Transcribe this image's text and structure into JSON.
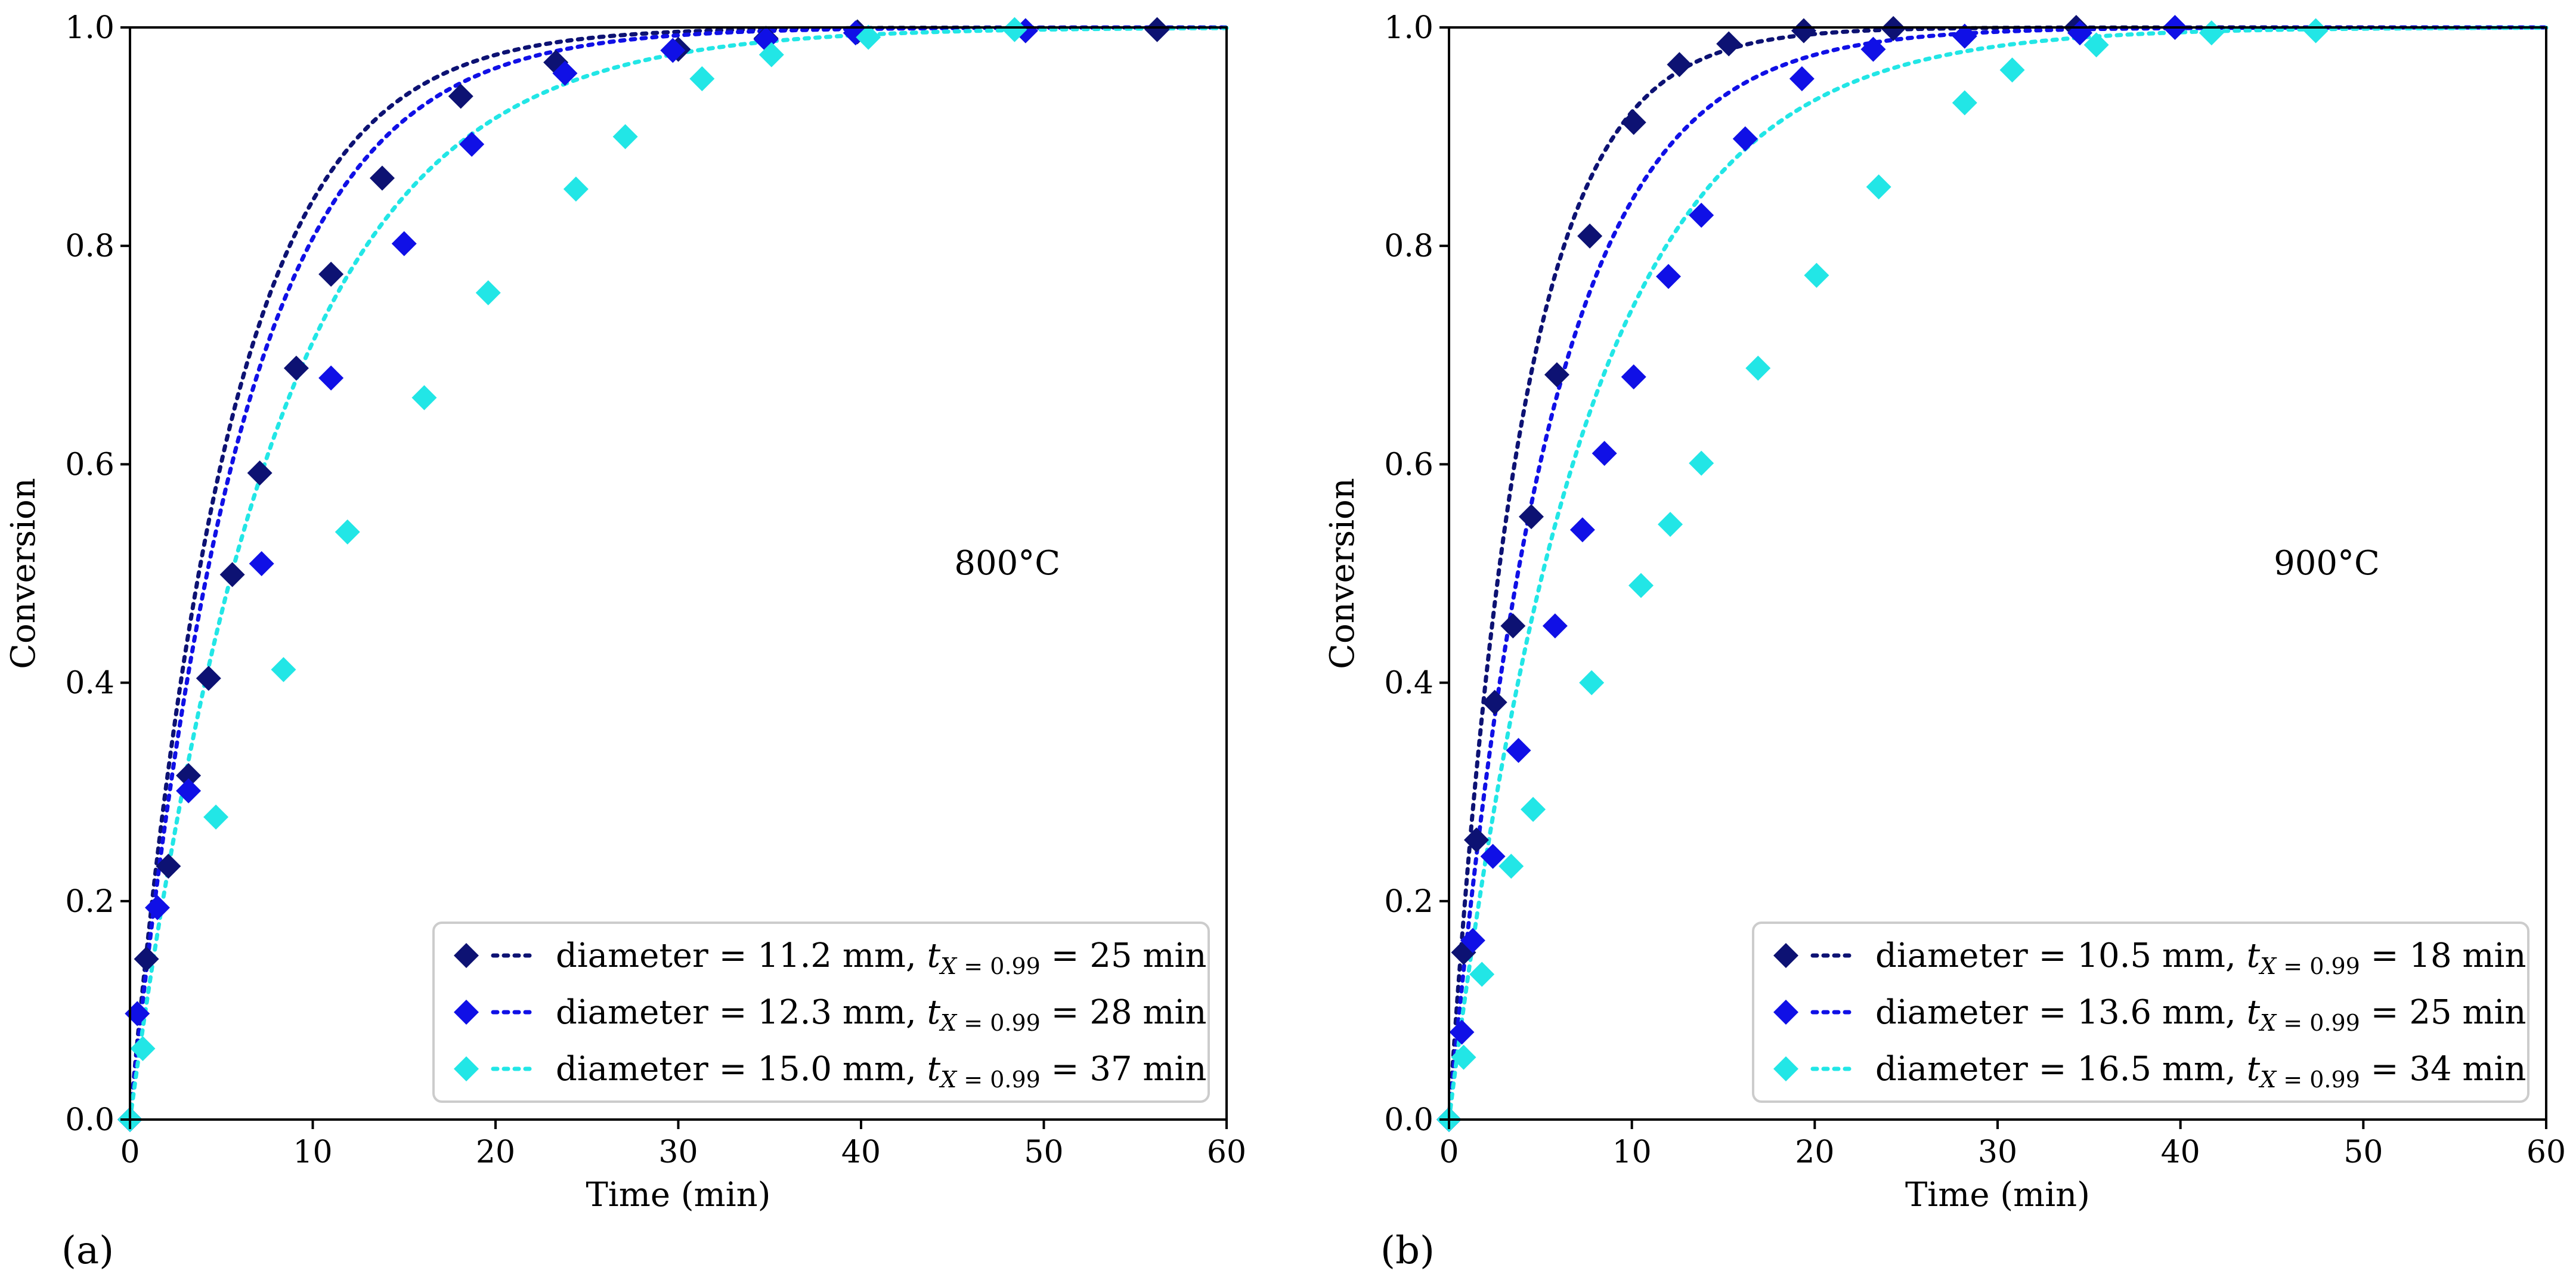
{
  "chart_data": [
    {
      "type": "scatter",
      "panel_label": "(a)",
      "annotation": "800°C",
      "xlabel": "Time (min)",
      "ylabel": "Conversion",
      "xlim": [
        0,
        60
      ],
      "ylim": [
        0,
        1.0
      ],
      "xticks": [
        "0",
        "10",
        "20",
        "30",
        "40",
        "50",
        "60"
      ],
      "yticks": [
        "0.0",
        "0.2",
        "0.4",
        "0.6",
        "0.8",
        "1.0"
      ],
      "legend_position": "bottom-right",
      "series": [
        {
          "name": "diameter = 11.2 mm, t_X=0.99 = 25 min",
          "legend_prefix": "diameter = 11.2 mm, ",
          "legend_suffix": " = 25 min",
          "color": "#0d1273",
          "fit_t99": 25,
          "x": [
            0,
            0.9,
            2.1,
            3.2,
            4.3,
            5.6,
            7.1,
            9.1,
            11.0,
            13.8,
            18.1,
            23.3,
            30.0,
            34.8,
            39.8,
            49.0,
            56.2
          ],
          "y": [
            0.0,
            0.147,
            0.232,
            0.315,
            0.404,
            0.499,
            0.592,
            0.688,
            0.774,
            0.862,
            0.937,
            0.968,
            0.98,
            0.99,
            0.996,
            0.997,
            0.998
          ]
        },
        {
          "name": "diameter = 12.3 mm, t_X=0.99 = 28 min",
          "legend_prefix": "diameter = 12.3 mm, ",
          "legend_suffix": " = 28 min",
          "color": "#1010e6",
          "fit_t99": 28,
          "x": [
            0,
            0.4,
            1.5,
            3.2,
            7.2,
            11.0,
            15.0,
            18.7,
            23.8,
            29.7,
            34.8,
            39.7,
            49.0
          ],
          "y": [
            0.0,
            0.097,
            0.194,
            0.301,
            0.509,
            0.679,
            0.802,
            0.893,
            0.958,
            0.979,
            0.989,
            0.995,
            0.997
          ]
        },
        {
          "name": "diameter = 15.0 mm, t_X=0.99 = 37 min",
          "legend_prefix": "diameter = 15.0 mm, ",
          "legend_suffix": " = 37 min",
          "color": "#22e6e6",
          "fit_t99": 37,
          "x": [
            0,
            0.7,
            4.7,
            8.4,
            11.9,
            16.1,
            19.6,
            24.4,
            27.1,
            31.3,
            35.1,
            40.4,
            48.4
          ],
          "y": [
            0.0,
            0.065,
            0.277,
            0.412,
            0.538,
            0.661,
            0.757,
            0.852,
            0.9,
            0.953,
            0.975,
            0.991,
            0.998
          ]
        }
      ]
    },
    {
      "type": "scatter",
      "panel_label": "(b)",
      "annotation": "900°C",
      "xlabel": "Time (min)",
      "ylabel": "Conversion",
      "xlim": [
        0,
        60
      ],
      "ylim": [
        0,
        1.0
      ],
      "xticks": [
        "0",
        "10",
        "20",
        "30",
        "40",
        "50",
        "60"
      ],
      "yticks": [
        "0.0",
        "0.2",
        "0.4",
        "0.6",
        "0.8",
        "1.0"
      ],
      "legend_position": "bottom-right",
      "series": [
        {
          "name": "diameter = 10.5 mm, t_X=0.99 = 18 min",
          "legend_prefix": "diameter = 10.5 mm, ",
          "legend_suffix": " = 18 min",
          "color": "#0d1273",
          "fit_t99": 18,
          "x": [
            0,
            0.8,
            1.5,
            2.5,
            3.5,
            4.5,
            5.9,
            7.7,
            10.1,
            12.6,
            15.3,
            19.4,
            24.3,
            34.3
          ],
          "y": [
            0.0,
            0.153,
            0.256,
            0.382,
            0.452,
            0.552,
            0.682,
            0.809,
            0.913,
            0.966,
            0.985,
            0.997,
            0.999,
            1.0
          ]
        },
        {
          "name": "diameter = 13.6 mm, t_X=0.99 = 25 min",
          "legend_prefix": "diameter = 13.6 mm, ",
          "legend_suffix": " = 25 min",
          "color": "#1010e6",
          "fit_t99": 25,
          "x": [
            0,
            0.7,
            1.3,
            2.4,
            3.8,
            5.8,
            7.3,
            8.5,
            10.1,
            12.0,
            13.8,
            16.2,
            19.3,
            23.2,
            28.2,
            34.5,
            39.7
          ],
          "y": [
            0.0,
            0.08,
            0.164,
            0.241,
            0.338,
            0.452,
            0.54,
            0.61,
            0.68,
            0.772,
            0.828,
            0.898,
            0.953,
            0.98,
            0.992,
            0.995,
            1.0
          ]
        },
        {
          "name": "diameter = 16.5 mm, t_X=0.99 = 34 min",
          "legend_prefix": "diameter = 16.5 mm, ",
          "legend_suffix": " = 34 min",
          "color": "#22e6e6",
          "fit_t99": 34,
          "x": [
            0,
            0.8,
            1.8,
            3.4,
            4.6,
            7.8,
            10.5,
            12.1,
            13.8,
            16.9,
            20.1,
            23.5,
            28.2,
            30.8,
            35.4,
            41.7,
            47.4
          ],
          "y": [
            0.0,
            0.057,
            0.133,
            0.232,
            0.284,
            0.4,
            0.489,
            0.545,
            0.601,
            0.688,
            0.773,
            0.854,
            0.931,
            0.961,
            0.984,
            0.995,
            0.997
          ]
        }
      ]
    }
  ]
}
